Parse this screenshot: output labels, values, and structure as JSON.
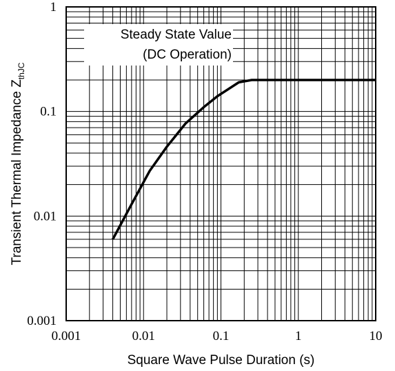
{
  "chart_data": {
    "type": "line",
    "x_scale": "log",
    "y_scale": "log",
    "xlim": [
      0.001,
      10
    ],
    "ylim": [
      0.001,
      1
    ],
    "grid": true,
    "xlabel": "Square Wave Pulse Duration (s)",
    "ylabel": "Transient Thermal Impedance Z",
    "ylabel_subscript": "thJC",
    "x_ticks": [
      {
        "value": 0.001,
        "label": "0.001"
      },
      {
        "value": 0.01,
        "label": "0.01"
      },
      {
        "value": 0.1,
        "label": "0.1"
      },
      {
        "value": 1,
        "label": "1"
      },
      {
        "value": 10,
        "label": "10"
      }
    ],
    "y_ticks": [
      {
        "value": 0.001,
        "label": "0.001"
      },
      {
        "value": 0.01,
        "label": "0.01"
      },
      {
        "value": 0.1,
        "label": "0.1"
      },
      {
        "value": 1,
        "label": "1"
      }
    ],
    "annotation": {
      "line1": "Steady State Value",
      "line2": "(DC Operation)"
    },
    "series": [
      {
        "color": "#000000",
        "points": [
          {
            "x": 0.004,
            "y": 0.006
          },
          {
            "x": 0.007,
            "y": 0.013
          },
          {
            "x": 0.012,
            "y": 0.027
          },
          {
            "x": 0.02,
            "y": 0.046
          },
          {
            "x": 0.035,
            "y": 0.077
          },
          {
            "x": 0.06,
            "y": 0.11
          },
          {
            "x": 0.09,
            "y": 0.14
          },
          {
            "x": 0.17,
            "y": 0.19
          },
          {
            "x": 0.25,
            "y": 0.2
          },
          {
            "x": 10,
            "y": 0.2
          }
        ]
      }
    ]
  }
}
